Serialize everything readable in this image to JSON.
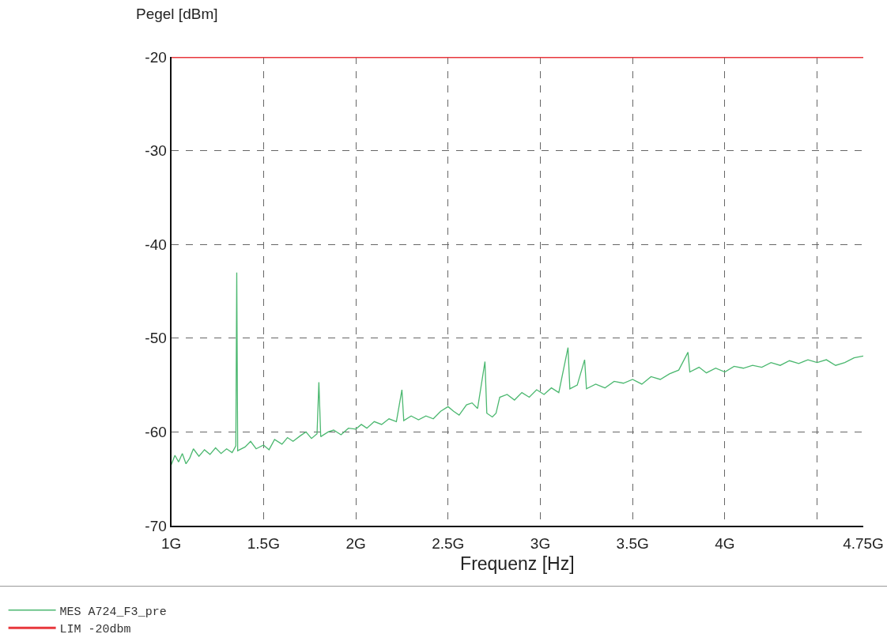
{
  "chart_data": {
    "type": "line",
    "xlabel": "Frequenz [Hz]",
    "ylabel": "Pegel [dBm]",
    "xlim": [
      1,
      4.75
    ],
    "ylim": [
      -70,
      -20
    ],
    "xticks": [
      {
        "value": 1,
        "label": "1G"
      },
      {
        "value": 1.5,
        "label": "1.5G"
      },
      {
        "value": 2,
        "label": "2G"
      },
      {
        "value": 2.5,
        "label": "2.5G"
      },
      {
        "value": 3,
        "label": "3G"
      },
      {
        "value": 3.5,
        "label": "3.5G"
      },
      {
        "value": 4,
        "label": "4G"
      },
      {
        "value": 4.5,
        "label": null
      },
      {
        "value": 4.75,
        "label": "4.75G"
      }
    ],
    "yticks": [
      -70,
      -60,
      -50,
      -40,
      -30,
      -20
    ],
    "grid": true,
    "legend": "bottom left",
    "marker": "none",
    "line_style": "solid",
    "series": [
      {
        "name": "MES A724_F3_pre",
        "color": "#4cb870",
        "x": [
          1.0,
          1.02,
          1.04,
          1.06,
          1.08,
          1.1,
          1.12,
          1.15,
          1.18,
          1.21,
          1.24,
          1.27,
          1.3,
          1.33,
          1.35,
          1.355,
          1.36,
          1.4,
          1.43,
          1.46,
          1.5,
          1.53,
          1.56,
          1.6,
          1.63,
          1.66,
          1.7,
          1.73,
          1.76,
          1.79,
          1.8,
          1.81,
          1.85,
          1.88,
          1.92,
          1.96,
          2.0,
          2.03,
          2.06,
          2.1,
          2.14,
          2.18,
          2.22,
          2.25,
          2.26,
          2.3,
          2.34,
          2.38,
          2.42,
          2.46,
          2.5,
          2.53,
          2.56,
          2.6,
          2.63,
          2.66,
          2.7,
          2.71,
          2.74,
          2.76,
          2.78,
          2.82,
          2.86,
          2.9,
          2.94,
          2.98,
          3.02,
          3.06,
          3.1,
          3.15,
          3.16,
          3.2,
          3.24,
          3.25,
          3.3,
          3.35,
          3.4,
          3.45,
          3.5,
          3.55,
          3.6,
          3.65,
          3.7,
          3.75,
          3.8,
          3.81,
          3.86,
          3.9,
          3.95,
          4.0,
          4.05,
          4.1,
          4.15,
          4.2,
          4.25,
          4.3,
          4.35,
          4.4,
          4.45,
          4.5,
          4.55,
          4.6,
          4.65,
          4.7,
          4.75
        ],
        "values": [
          -63.5,
          -62.5,
          -63.2,
          -62.3,
          -63.4,
          -62.8,
          -61.8,
          -62.6,
          -61.9,
          -62.4,
          -61.7,
          -62.3,
          -61.8,
          -62.2,
          -61.5,
          -43,
          -62,
          -61.6,
          -61.0,
          -61.8,
          -61.4,
          -61.9,
          -60.8,
          -61.3,
          -60.6,
          -61.0,
          -60.4,
          -60.0,
          -60.7,
          -60.2,
          -54.7,
          -60.5,
          -60.0,
          -59.8,
          -60.3,
          -59.6,
          -59.7,
          -59.2,
          -59.6,
          -58.9,
          -59.2,
          -58.6,
          -58.9,
          -55.5,
          -58.8,
          -58.3,
          -58.7,
          -58.3,
          -58.6,
          -57.8,
          -57.3,
          -57.8,
          -58.2,
          -57.1,
          -56.9,
          -57.5,
          -52.5,
          -58.0,
          -58.4,
          -58.0,
          -56.3,
          -56.0,
          -56.6,
          -55.8,
          -56.3,
          -55.5,
          -56.0,
          -55.3,
          -55.8,
          -51.0,
          -55.4,
          -55.0,
          -52.3,
          -55.4,
          -54.9,
          -55.3,
          -54.6,
          -54.8,
          -54.4,
          -54.9,
          -54.1,
          -54.4,
          -53.8,
          -53.4,
          -51.5,
          -53.6,
          -53.1,
          -53.7,
          -53.2,
          -53.6,
          -53.0,
          -53.2,
          -52.9,
          -53.1,
          -52.6,
          -52.9,
          -52.4,
          -52.7,
          -52.3,
          -52.6,
          -52.3,
          -52.9,
          -52.6,
          -52.1,
          -51.9
        ]
      },
      {
        "name": "LIM -20dbm",
        "color": "#e8383d",
        "x": [
          1,
          4.75
        ],
        "values": [
          -20,
          -20
        ]
      }
    ]
  }
}
